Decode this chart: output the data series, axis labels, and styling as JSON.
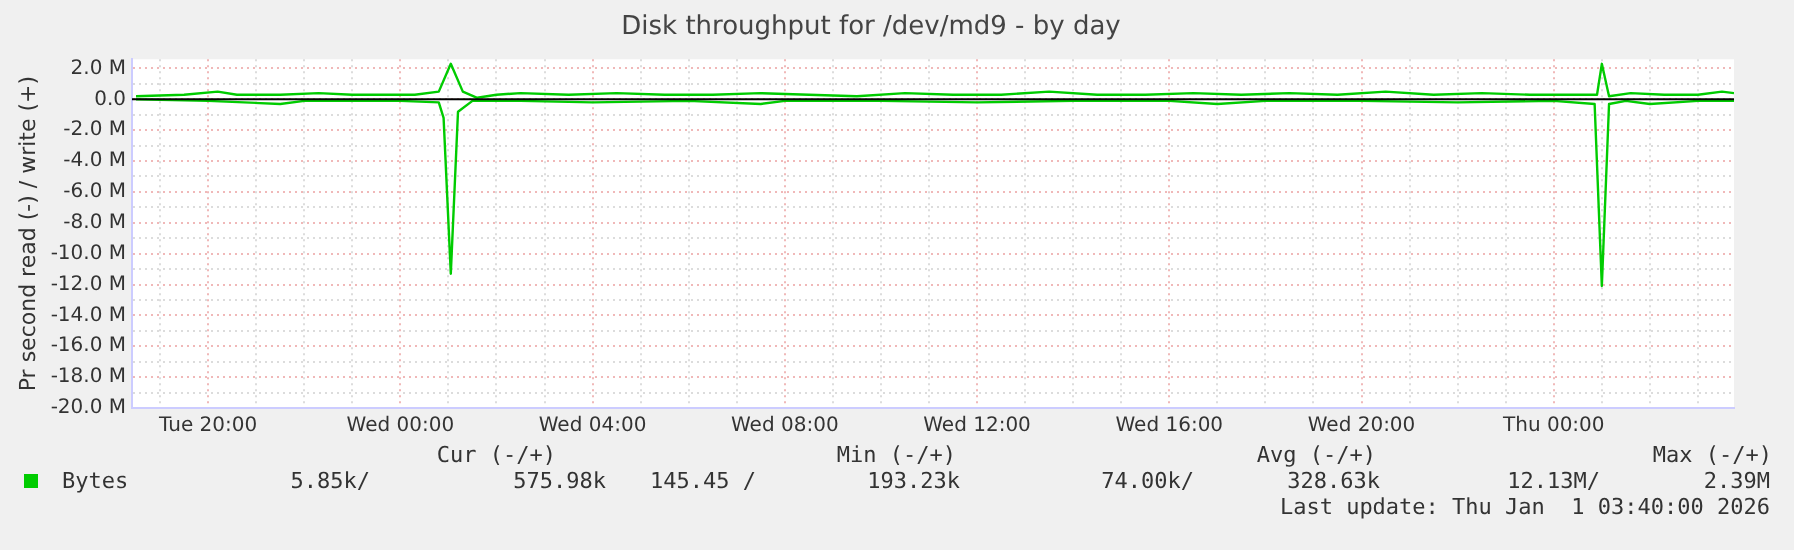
{
  "chart_data": {
    "type": "line",
    "title": "Disk throughput for /dev/md9 - by day",
    "ylabel": "Pr second read (-) / write (+)",
    "xlim": [
      "2025-12-30T18:25",
      "2026-01-01T03:45"
    ],
    "xticks": [
      {
        "value": "2025-12-30T19:00",
        "label": null
      },
      {
        "value": "2025-12-30T20:00",
        "label": "Tue 20:00"
      },
      {
        "value": "2025-12-30T21:00",
        "label": null
      },
      {
        "value": "2025-12-30T22:00",
        "label": null
      },
      {
        "value": "2025-12-30T23:00",
        "label": null
      },
      {
        "value": "2025-12-31T00:00",
        "label": "Wed 00:00"
      },
      {
        "value": "2025-12-31T01:00",
        "label": null
      },
      {
        "value": "2025-12-31T02:00",
        "label": null
      },
      {
        "value": "2025-12-31T03:00",
        "label": null
      },
      {
        "value": "2025-12-31T04:00",
        "label": "Wed 04:00"
      },
      {
        "value": "2025-12-31T05:00",
        "label": null
      },
      {
        "value": "2025-12-31T06:00",
        "label": null
      },
      {
        "value": "2025-12-31T07:00",
        "label": null
      },
      {
        "value": "2025-12-31T08:00",
        "label": "Wed 08:00"
      },
      {
        "value": "2025-12-31T09:00",
        "label": null
      },
      {
        "value": "2025-12-31T10:00",
        "label": null
      },
      {
        "value": "2025-12-31T11:00",
        "label": null
      },
      {
        "value": "2025-12-31T12:00",
        "label": "Wed 12:00"
      },
      {
        "value": "2025-12-31T13:00",
        "label": null
      },
      {
        "value": "2025-12-31T14:00",
        "label": null
      },
      {
        "value": "2025-12-31T15:00",
        "label": null
      },
      {
        "value": "2025-12-31T16:00",
        "label": "Wed 16:00"
      },
      {
        "value": "2025-12-31T17:00",
        "label": null
      },
      {
        "value": "2025-12-31T18:00",
        "label": null
      },
      {
        "value": "2025-12-31T19:00",
        "label": null
      },
      {
        "value": "2025-12-31T20:00",
        "label": "Wed 20:00"
      },
      {
        "value": "2025-12-31T21:00",
        "label": null
      },
      {
        "value": "2025-12-31T22:00",
        "label": null
      },
      {
        "value": "2025-12-31T23:00",
        "label": null
      },
      {
        "value": "2026-01-01T00:00",
        "label": "Thu 00:00"
      },
      {
        "value": "2026-01-01T01:00",
        "label": null
      },
      {
        "value": "2026-01-01T02:00",
        "label": null
      },
      {
        "value": "2026-01-01T03:00",
        "label": null
      }
    ],
    "ylim": [
      -20,
      2.6
    ],
    "yticks": [
      {
        "value": 2,
        "label": "2.0 M"
      },
      {
        "value": 1,
        "label": null
      },
      {
        "value": 0,
        "label": "0.0"
      },
      {
        "value": -1,
        "label": null
      },
      {
        "value": -2,
        "label": "-2.0 M"
      },
      {
        "value": -3,
        "label": null
      },
      {
        "value": -4,
        "label": "-4.0 M"
      },
      {
        "value": -5,
        "label": null
      },
      {
        "value": -6,
        "label": "-6.0 M"
      },
      {
        "value": -7,
        "label": null
      },
      {
        "value": -8,
        "label": "-8.0 M"
      },
      {
        "value": -9,
        "label": null
      },
      {
        "value": -10,
        "label": "-10.0 M"
      },
      {
        "value": -11,
        "label": null
      },
      {
        "value": -12,
        "label": "-12.0 M"
      },
      {
        "value": -13,
        "label": null
      },
      {
        "value": -14,
        "label": "-14.0 M"
      },
      {
        "value": -15,
        "label": null
      },
      {
        "value": -16,
        "label": "-16.0 M"
      },
      {
        "value": -17,
        "label": null
      },
      {
        "value": -18,
        "label": "-18.0 M"
      },
      {
        "value": -19,
        "label": null
      },
      {
        "value": -20,
        "label": "-20.0 M"
      }
    ],
    "grid": true,
    "legend": "bottom left",
    "marker": "none",
    "line_style": "solid",
    "ref_lines": [
      {
        "axis": "y",
        "value": 0,
        "color": "#000000"
      }
    ],
    "series": [
      {
        "name": "Bytes",
        "color": "#00cc00",
        "x": [
          "2025-12-30T18:30",
          "2025-12-30T19:30",
          "2025-12-30T20:12",
          "2025-12-30T20:36",
          "2025-12-30T21:30",
          "2025-12-30T22:18",
          "2025-12-30T23:00",
          "2025-12-30T23:42",
          "2025-12-31T00:18",
          "2025-12-31T00:48",
          "2025-12-31T01:03",
          "2025-12-31T01:18",
          "2025-12-31T01:36",
          "2025-12-31T02:00",
          "2025-12-31T02:30",
          "2025-12-31T03:30",
          "2025-12-31T04:30",
          "2025-12-31T05:30",
          "2025-12-31T06:30",
          "2025-12-31T07:30",
          "2025-12-31T08:30",
          "2025-12-31T09:30",
          "2025-12-31T10:30",
          "2025-12-31T11:30",
          "2025-12-31T12:30",
          "2025-12-31T13:30",
          "2025-12-31T14:30",
          "2025-12-31T15:30",
          "2025-12-31T16:30",
          "2025-12-31T17:30",
          "2025-12-31T18:30",
          "2025-12-31T19:30",
          "2025-12-31T20:30",
          "2025-12-31T21:30",
          "2025-12-31T22:30",
          "2025-12-31T23:30",
          "2026-01-01T00:30",
          "2026-01-01T00:54",
          "2026-01-01T01:00",
          "2026-01-01T01:09",
          "2026-01-01T01:36",
          "2026-01-01T02:18",
          "2026-01-01T03:00",
          "2026-01-01T03:30",
          "2026-01-01T03:45"
        ],
        "values": [
          0.2,
          0.3,
          0.5,
          0.3,
          0.3,
          0.4,
          0.3,
          0.3,
          0.3,
          0.5,
          2.3,
          0.5,
          0.1,
          0.3,
          0.4,
          0.3,
          0.4,
          0.3,
          0.3,
          0.4,
          0.3,
          0.2,
          0.4,
          0.3,
          0.3,
          0.5,
          0.3,
          0.3,
          0.4,
          0.3,
          0.4,
          0.3,
          0.5,
          0.3,
          0.4,
          0.3,
          0.3,
          0.3,
          2.3,
          0.2,
          0.4,
          0.3,
          0.3,
          0.5,
          0.4
        ]
      },
      {
        "color": "#00cc00",
        "x": [
          "2025-12-30T18:30",
          "2025-12-30T20:00",
          "2025-12-30T21:30",
          "2025-12-30T22:00",
          "2025-12-31T00:00",
          "2025-12-31T00:48",
          "2025-12-31T00:54",
          "2025-12-31T01:03",
          "2025-12-31T01:12",
          "2025-12-31T01:30",
          "2025-12-31T02:30",
          "2025-12-31T04:00",
          "2025-12-31T06:00",
          "2025-12-31T07:30",
          "2025-12-31T08:00",
          "2025-12-31T10:00",
          "2025-12-31T12:00",
          "2025-12-31T14:00",
          "2025-12-31T16:00",
          "2025-12-31T17:00",
          "2025-12-31T18:00",
          "2025-12-31T20:00",
          "2025-12-31T22:00",
          "2026-01-01T00:00",
          "2026-01-01T00:51",
          "2026-01-01T01:00",
          "2026-01-01T01:09",
          "2026-01-01T01:30",
          "2026-01-01T02:00",
          "2026-01-01T03:00",
          "2026-01-01T03:45"
        ],
        "values": [
          0,
          -0.1,
          -0.3,
          -0.1,
          -0.1,
          -0.2,
          -1.2,
          -11.3,
          -0.8,
          -0.1,
          -0.1,
          -0.2,
          -0.1,
          -0.3,
          -0.1,
          -0.1,
          -0.2,
          -0.1,
          -0.1,
          -0.3,
          -0.1,
          -0.1,
          -0.2,
          -0.1,
          -0.3,
          -12.1,
          -0.3,
          -0.1,
          -0.3,
          -0.1,
          -0.1
        ]
      }
    ],
    "annotations": [
      "Cur (-/+)",
      "Min (-/+)",
      "Avg (-/+)",
      "Max (-/+)",
      "5.85k/",
      "575.98k",
      "145.45 /",
      "193.23k",
      "74.00k/",
      "328.63k",
      "12.13M/",
      "2.39M",
      "Last update: Thu Jan  1 03:40:00 2026"
    ]
  }
}
